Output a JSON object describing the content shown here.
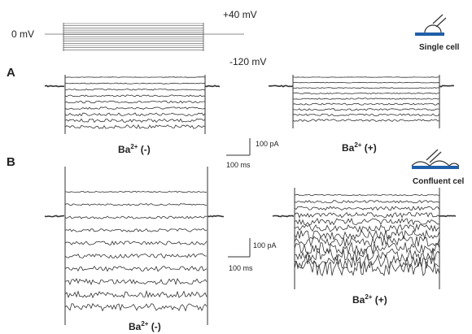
{
  "protocol": {
    "baseline_label": "0 mV",
    "top_label": "+40 mV",
    "bottom_label": "-120 mV"
  },
  "single_cell": {
    "label": "Single cell"
  },
  "confluent_cell": {
    "label": "Confluent cel"
  },
  "panel_a": {
    "letter": "A",
    "left_label": {
      "base": "Ba",
      "sup": "2+",
      "suffix": " (-)"
    },
    "right_label": {
      "base": "Ba",
      "sup": "2+",
      "suffix": " (+)"
    },
    "scale_current": "100 pA",
    "scale_time": "100 ms"
  },
  "panel_b": {
    "letter": "B",
    "left_label": {
      "base": "Ba",
      "sup": "2+",
      "suffix": " (-)"
    },
    "right_label": {
      "base": "Ba",
      "sup": "2+",
      "suffix": " (+)"
    },
    "scale_current": "100 pA",
    "scale_time": "100 ms"
  }
}
